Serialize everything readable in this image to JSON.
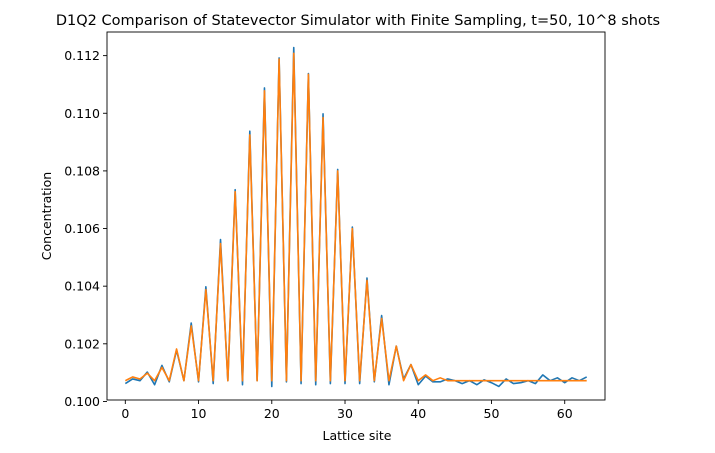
{
  "chart_data": {
    "type": "line",
    "title": "D1Q2 Comparison of Statevector Simulator with Finite Sampling, t=50, 10^8 shots",
    "xlabel": "Lattice site",
    "ylabel": "Concentration",
    "xlim": [
      -2.5,
      65.5
    ],
    "ylim": [
      0.10005,
      0.11282
    ],
    "xticks": [
      0,
      10,
      20,
      30,
      40,
      50,
      60
    ],
    "yticks": [
      0.1,
      0.102,
      0.104,
      0.106,
      0.108,
      0.11,
      0.112
    ],
    "grid": false,
    "legend": "none",
    "x": [
      0,
      1,
      2,
      3,
      4,
      5,
      6,
      7,
      8,
      9,
      10,
      11,
      12,
      13,
      14,
      15,
      16,
      17,
      18,
      19,
      20,
      21,
      22,
      23,
      24,
      25,
      26,
      27,
      28,
      29,
      30,
      31,
      32,
      33,
      34,
      35,
      36,
      37,
      38,
      39,
      40,
      41,
      42,
      43,
      44,
      45,
      46,
      47,
      48,
      49,
      50,
      51,
      52,
      53,
      54,
      55,
      56,
      57,
      58,
      59,
      60,
      61,
      62,
      63
    ],
    "series": [
      {
        "color": "#1f77b4",
        "values": [
          0.10062,
          0.10078,
          0.10072,
          0.10102,
          0.10058,
          0.10125,
          0.10068,
          0.10178,
          0.10072,
          0.10272,
          0.10068,
          0.10398,
          0.10062,
          0.10562,
          0.10072,
          0.10735,
          0.10058,
          0.10938,
          0.10072,
          0.11088,
          0.10052,
          0.11192,
          0.10068,
          0.11228,
          0.10062,
          0.11138,
          0.10058,
          0.10998,
          0.10062,
          0.10805,
          0.10062,
          0.10605,
          0.10062,
          0.10428,
          0.10068,
          0.10298,
          0.10058,
          0.10192,
          0.10078,
          0.10128,
          0.10058,
          0.10088,
          0.10068,
          0.10068,
          0.10078,
          0.10072,
          0.10062,
          0.10072,
          0.10058,
          0.10075,
          0.10065,
          0.10052,
          0.10078,
          0.10062,
          0.10065,
          0.10072,
          0.10062,
          0.10092,
          0.10072,
          0.10082,
          0.10065,
          0.10082,
          0.10072,
          0.10085
        ]
      },
      {
        "color": "#ff7f0e",
        "values": [
          0.10072,
          0.10085,
          0.10078,
          0.10098,
          0.10072,
          0.10118,
          0.10072,
          0.10182,
          0.10072,
          0.10262,
          0.10072,
          0.10388,
          0.10072,
          0.10548,
          0.10072,
          0.10728,
          0.10072,
          0.10925,
          0.10072,
          0.11078,
          0.10072,
          0.11188,
          0.10072,
          0.11208,
          0.10072,
          0.11135,
          0.10072,
          0.10985,
          0.10072,
          0.108,
          0.10072,
          0.106,
          0.10072,
          0.1042,
          0.10072,
          0.10288,
          0.10072,
          0.10192,
          0.10072,
          0.10128,
          0.10072,
          0.10092,
          0.10072,
          0.10082,
          0.10072,
          0.10072,
          0.10072,
          0.10072,
          0.10072,
          0.10072,
          0.10072,
          0.10072,
          0.10072,
          0.10072,
          0.10072,
          0.10072,
          0.10072,
          0.10072,
          0.10072,
          0.10072,
          0.10072,
          0.10072,
          0.10072,
          0.10072
        ]
      }
    ]
  }
}
